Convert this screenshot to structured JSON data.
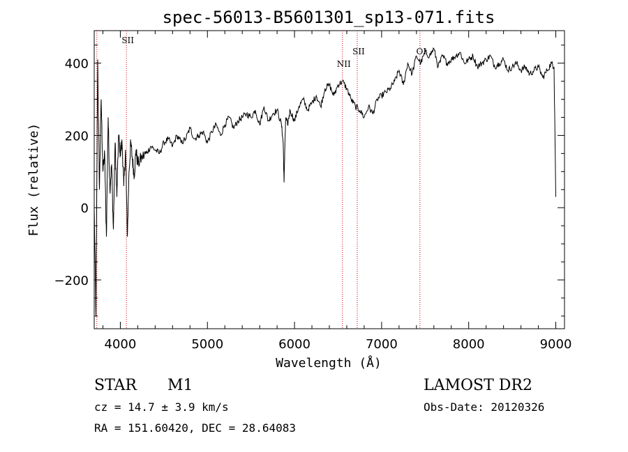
{
  "chart_data": {
    "type": "line",
    "title": "spec-56013-B5601301_sp13-071.fits",
    "xlabel": "Wavelength (Å)",
    "ylabel": "Flux (relative)",
    "xlim": [
      3700,
      9100
    ],
    "ylim": [
      -335,
      490
    ],
    "x_ticks": [
      4000,
      5000,
      6000,
      7000,
      8000,
      9000
    ],
    "y_ticks": [
      -200,
      0,
      200,
      400
    ],
    "grid": false,
    "series": [
      {
        "x": [
          3700,
          3720,
          3740,
          3760,
          3780,
          3800,
          3820,
          3840,
          3860,
          3880,
          3900,
          3920,
          3940,
          3960,
          3980,
          4000,
          4020,
          4040,
          4060,
          4080,
          4100,
          4120,
          4140,
          4160,
          4180,
          4200,
          4250,
          4300,
          4350,
          4400,
          4450,
          4500,
          4550,
          4600,
          4650,
          4700,
          4750,
          4800,
          4850,
          4900,
          4950,
          5000,
          5050,
          5100,
          5150,
          5200,
          5250,
          5300,
          5350,
          5400,
          5450,
          5500,
          5550,
          5600,
          5650,
          5700,
          5750,
          5800,
          5850,
          5870,
          5880,
          5890,
          5900,
          5920,
          5950,
          6000,
          6050,
          6100,
          6150,
          6200,
          6250,
          6300,
          6350,
          6400,
          6450,
          6500,
          6550,
          6600,
          6650,
          6700,
          6750,
          6800,
          6850,
          6900,
          6950,
          7000,
          7050,
          7100,
          7150,
          7200,
          7250,
          7300,
          7350,
          7400,
          7450,
          7500,
          7550,
          7600,
          7650,
          7700,
          7750,
          7800,
          7850,
          7900,
          7950,
          8000,
          8050,
          8100,
          8150,
          8200,
          8250,
          8300,
          8350,
          8400,
          8450,
          8500,
          8550,
          8600,
          8650,
          8700,
          8750,
          8800,
          8850,
          8900,
          8950,
          8980,
          9000
        ],
        "y": [
          0,
          -300,
          410,
          50,
          300,
          100,
          150,
          -80,
          250,
          50,
          120,
          -60,
          180,
          30,
          200,
          150,
          180,
          60,
          160,
          -80,
          100,
          180,
          130,
          90,
          160,
          120,
          140,
          150,
          170,
          160,
          150,
          180,
          190,
          170,
          200,
          180,
          190,
          220,
          190,
          200,
          210,
          180,
          210,
          230,
          200,
          230,
          250,
          220,
          240,
          250,
          260,
          250,
          270,
          230,
          280,
          240,
          260,
          270,
          230,
          180,
          70,
          180,
          250,
          230,
          270,
          240,
          280,
          300,
          270,
          290,
          310,
          280,
          330,
          340,
          310,
          340,
          350,
          330,
          300,
          280,
          270,
          250,
          280,
          260,
          300,
          310,
          320,
          330,
          350,
          380,
          340,
          400,
          370,
          420,
          400,
          430,
          420,
          440,
          390,
          420,
          400,
          410,
          420,
          430,
          400,
          410,
          420,
          390,
          400,
          410,
          420,
          390,
          400,
          410,
          380,
          390,
          400,
          380,
          390,
          370,
          380,
          390,
          360,
          380,
          400,
          390,
          30
        ],
        "approximate": true
      }
    ],
    "line_markers": [
      {
        "label": "SII",
        "x": 4070
      },
      {
        "label": "NII",
        "x": 6550
      },
      {
        "label": "SII",
        "x": 6720
      },
      {
        "label": "OI",
        "x": 7440
      },
      {
        "label": "",
        "x": 3730
      }
    ]
  },
  "info": {
    "class_label": "STAR",
    "subclass_label": "M1",
    "survey": "LAMOST DR2",
    "cz": "cz = 14.7 ± 3.9 km/s",
    "obs_date": "Obs-Date: 20120326",
    "coords": "RA = 151.60420, DEC =  28.64083"
  }
}
